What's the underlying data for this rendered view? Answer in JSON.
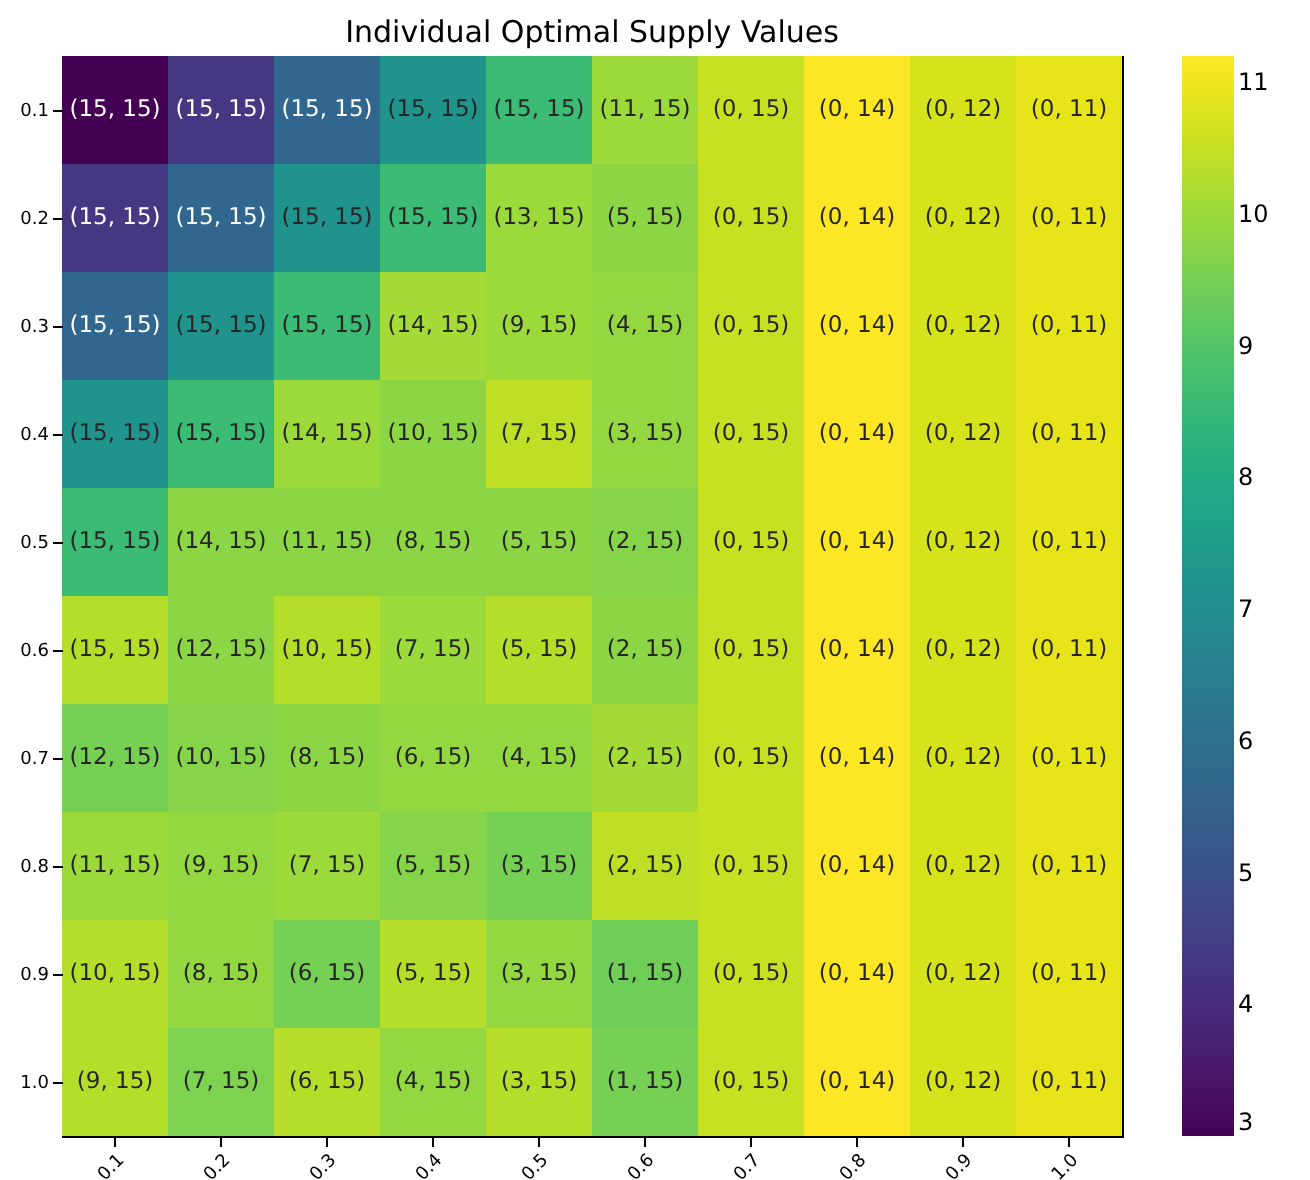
{
  "chart_data": {
    "type": "heatmap",
    "title": "Individual Optimal Supply Values",
    "categories": [
      "0.1",
      "0.2",
      "0.3",
      "0.4",
      "0.5",
      "0.6",
      "0.7",
      "0.8",
      "0.9",
      "1.0"
    ],
    "y_categories": [
      "0.1",
      "0.2",
      "0.3",
      "0.4",
      "0.5",
      "0.6",
      "0.7",
      "0.8",
      "0.9",
      "1.0"
    ],
    "cells": [
      [
        3,
        4.3,
        5.7,
        7.2,
        8.6,
        10.0,
        10.5,
        11.2,
        10.7,
        10.9
      ],
      [
        4.3,
        5.7,
        7.2,
        8.6,
        10.0,
        9.8,
        10.5,
        11.2,
        10.7,
        10.9
      ],
      [
        5.7,
        7.2,
        8.6,
        10.1,
        10.0,
        9.9,
        10.5,
        11.2,
        10.7,
        10.9
      ],
      [
        7.2,
        8.6,
        10.0,
        9.8,
        10.4,
        9.9,
        10.5,
        11.2,
        10.7,
        10.9
      ],
      [
        8.6,
        9.8,
        9.8,
        9.8,
        9.8,
        9.7,
        10.5,
        11.2,
        10.7,
        10.9
      ],
      [
        10.3,
        9.8,
        10.3,
        10.0,
        10.3,
        9.8,
        10.5,
        11.2,
        10.7,
        10.9
      ],
      [
        9.5,
        9.7,
        9.8,
        9.9,
        9.9,
        10.1,
        10.5,
        11.2,
        10.7,
        10.9
      ],
      [
        10.0,
        9.9,
        10.0,
        9.7,
        9.5,
        10.4,
        10.5,
        11.2,
        10.7,
        10.9
      ],
      [
        10.3,
        9.9,
        9.5,
        10.3,
        9.9,
        9.4,
        10.5,
        11.2,
        10.7,
        10.9
      ],
      [
        10.3,
        9.6,
        10.3,
        9.9,
        10.3,
        9.5,
        10.5,
        11.2,
        10.7,
        10.9
      ]
    ],
    "cell_labels": [
      [
        "(15, 15)",
        "(15, 15)",
        "(15, 15)",
        "(15, 15)",
        "(15, 15)",
        "(11, 15)",
        "(0, 15)",
        "(0, 14)",
        "(0, 12)",
        "(0, 11)"
      ],
      [
        "(15, 15)",
        "(15, 15)",
        "(15, 15)",
        "(15, 15)",
        "(13, 15)",
        "(5, 15)",
        "(0, 15)",
        "(0, 14)",
        "(0, 12)",
        "(0, 11)"
      ],
      [
        "(15, 15)",
        "(15, 15)",
        "(15, 15)",
        "(14, 15)",
        "(9, 15)",
        "(4, 15)",
        "(0, 15)",
        "(0, 14)",
        "(0, 12)",
        "(0, 11)"
      ],
      [
        "(15, 15)",
        "(15, 15)",
        "(14, 15)",
        "(10, 15)",
        "(7, 15)",
        "(3, 15)",
        "(0, 15)",
        "(0, 14)",
        "(0, 12)",
        "(0, 11)"
      ],
      [
        "(15, 15)",
        "(14, 15)",
        "(11, 15)",
        "(8, 15)",
        "(5, 15)",
        "(2, 15)",
        "(0, 15)",
        "(0, 14)",
        "(0, 12)",
        "(0, 11)"
      ],
      [
        "(15, 15)",
        "(12, 15)",
        "(10, 15)",
        "(7, 15)",
        "(5, 15)",
        "(2, 15)",
        "(0, 15)",
        "(0, 14)",
        "(0, 12)",
        "(0, 11)"
      ],
      [
        "(12, 15)",
        "(10, 15)",
        "(8, 15)",
        "(6, 15)",
        "(4, 15)",
        "(2, 15)",
        "(0, 15)",
        "(0, 14)",
        "(0, 12)",
        "(0, 11)"
      ],
      [
        "(11, 15)",
        "(9, 15)",
        "(7, 15)",
        "(5, 15)",
        "(3, 15)",
        "(2, 15)",
        "(0, 15)",
        "(0, 14)",
        "(0, 12)",
        "(0, 11)"
      ],
      [
        "(10, 15)",
        "(8, 15)",
        "(6, 15)",
        "(5, 15)",
        "(3, 15)",
        "(1, 15)",
        "(0, 15)",
        "(0, 14)",
        "(0, 12)",
        "(0, 11)"
      ],
      [
        "(9, 15)",
        "(7, 15)",
        "(6, 15)",
        "(4, 15)",
        "(3, 15)",
        "(1, 15)",
        "(0, 15)",
        "(0, 14)",
        "(0, 12)",
        "(0, 11)"
      ]
    ],
    "clim": [
      3,
      11.2
    ],
    "cticks": [
      3,
      4,
      5,
      6,
      7,
      8,
      9,
      10,
      11
    ]
  }
}
